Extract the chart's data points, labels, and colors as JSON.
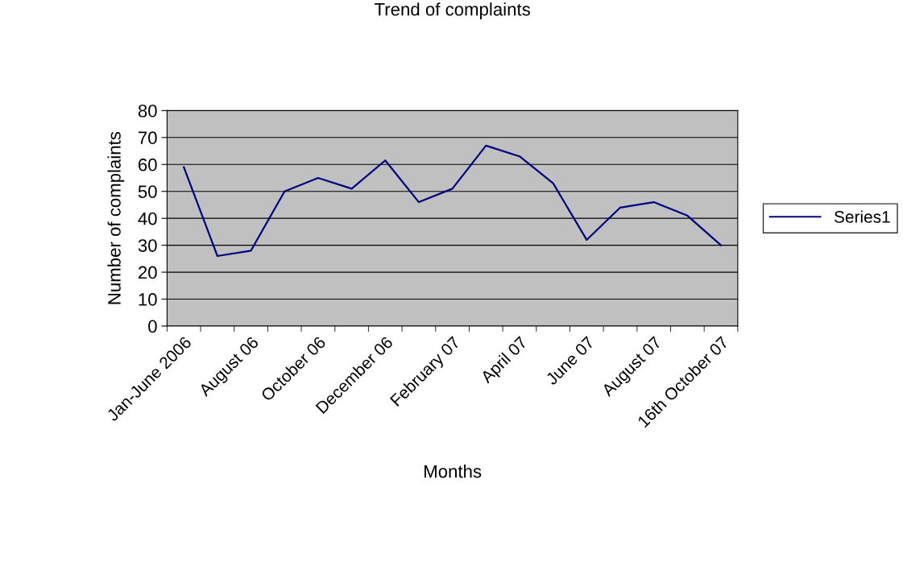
{
  "chart_data": {
    "type": "line",
    "title": "Trend of complaints",
    "xlabel": "Months",
    "ylabel": "Number of complaints",
    "categories": [
      "Jan-June 2006",
      null,
      "August 06",
      null,
      "October 06",
      null,
      "December 06",
      null,
      "February 07",
      null,
      "April 07",
      null,
      "June 07",
      null,
      "August 07",
      null,
      "16th October 07"
    ],
    "series": [
      {
        "name": "Series1",
        "color": "#000080",
        "values": [
          59,
          26,
          28,
          50,
          55,
          51,
          61.5,
          46,
          51,
          67,
          63,
          53,
          32,
          44,
          46,
          41,
          30
        ]
      }
    ],
    "ylim": [
      0,
      80
    ],
    "yticks": [
      0,
      10,
      20,
      30,
      40,
      50,
      60,
      70,
      80
    ],
    "grid": "y",
    "legend": "right",
    "marker": "none",
    "line_style": "solid"
  }
}
